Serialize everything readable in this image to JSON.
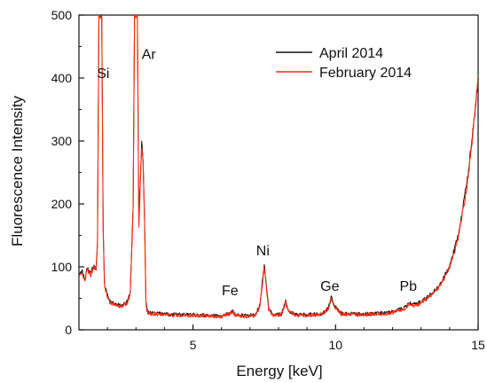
{
  "chart_data": {
    "type": "line",
    "title": "",
    "xlabel": "Energy [keV]",
    "ylabel": "Fluorescence Intensity",
    "xlim": [
      1,
      15
    ],
    "ylim": [
      0,
      500
    ],
    "x_ticks": [
      5,
      10,
      15
    ],
    "y_ticks": [
      0,
      100,
      200,
      300,
      400,
      500
    ],
    "grid": false,
    "legend_position": "top-right",
    "series": [
      {
        "name": "April 2014",
        "color": "#111111",
        "points": [
          [
            1.0,
            85
          ],
          [
            1.1,
            95
          ],
          [
            1.2,
            80
          ],
          [
            1.3,
            100
          ],
          [
            1.4,
            88
          ],
          [
            1.5,
            102
          ],
          [
            1.6,
            98
          ],
          [
            1.65,
            140
          ],
          [
            1.7,
            500
          ],
          [
            1.75,
            500
          ],
          [
            1.8,
            500
          ],
          [
            1.85,
            160
          ],
          [
            1.9,
            70
          ],
          [
            2.0,
            55
          ],
          [
            2.1,
            45
          ],
          [
            2.3,
            40
          ],
          [
            2.5,
            38
          ],
          [
            2.7,
            45
          ],
          [
            2.8,
            60
          ],
          [
            2.9,
            200
          ],
          [
            2.95,
            500
          ],
          [
            3.0,
            500
          ],
          [
            3.05,
            500
          ],
          [
            3.1,
            170
          ],
          [
            3.15,
            230
          ],
          [
            3.2,
            295
          ],
          [
            3.25,
            270
          ],
          [
            3.3,
            180
          ],
          [
            3.35,
            45
          ],
          [
            3.4,
            28
          ],
          [
            3.6,
            26
          ],
          [
            4.0,
            25
          ],
          [
            4.5,
            24
          ],
          [
            5.0,
            24
          ],
          [
            5.5,
            23
          ],
          [
            6.0,
            22
          ],
          [
            6.2,
            25
          ],
          [
            6.4,
            30
          ],
          [
            6.5,
            24
          ],
          [
            6.8,
            22
          ],
          [
            7.2,
            24
          ],
          [
            7.35,
            40
          ],
          [
            7.45,
            85
          ],
          [
            7.5,
            105
          ],
          [
            7.55,
            80
          ],
          [
            7.65,
            35
          ],
          [
            7.8,
            24
          ],
          [
            8.1,
            25
          ],
          [
            8.25,
            45
          ],
          [
            8.35,
            30
          ],
          [
            8.6,
            24
          ],
          [
            9.0,
            24
          ],
          [
            9.5,
            25
          ],
          [
            9.75,
            35
          ],
          [
            9.85,
            52
          ],
          [
            9.95,
            38
          ],
          [
            10.2,
            26
          ],
          [
            10.8,
            25
          ],
          [
            11.5,
            26
          ],
          [
            12.0,
            28
          ],
          [
            12.4,
            35
          ],
          [
            12.6,
            42
          ],
          [
            12.8,
            40
          ],
          [
            13.0,
            45
          ],
          [
            13.3,
            55
          ],
          [
            13.6,
            68
          ],
          [
            14.0,
            100
          ],
          [
            14.3,
            150
          ],
          [
            14.6,
            230
          ],
          [
            14.8,
            310
          ],
          [
            14.92,
            360
          ],
          [
            14.98,
            390
          ]
        ]
      },
      {
        "name": "February 2014",
        "color": "#ff2a0f",
        "points": [
          [
            1.0,
            82
          ],
          [
            1.1,
            92
          ],
          [
            1.2,
            78
          ],
          [
            1.3,
            97
          ],
          [
            1.4,
            85
          ],
          [
            1.5,
            99
          ],
          [
            1.6,
            96
          ],
          [
            1.65,
            135
          ],
          [
            1.7,
            500
          ],
          [
            1.75,
            500
          ],
          [
            1.8,
            500
          ],
          [
            1.85,
            155
          ],
          [
            1.9,
            68
          ],
          [
            2.0,
            52
          ],
          [
            2.1,
            43
          ],
          [
            2.3,
            39
          ],
          [
            2.5,
            37
          ],
          [
            2.7,
            43
          ],
          [
            2.8,
            58
          ],
          [
            2.9,
            190
          ],
          [
            2.95,
            500
          ],
          [
            3.0,
            500
          ],
          [
            3.05,
            500
          ],
          [
            3.1,
            165
          ],
          [
            3.15,
            225
          ],
          [
            3.2,
            290
          ],
          [
            3.25,
            265
          ],
          [
            3.3,
            175
          ],
          [
            3.35,
            43
          ],
          [
            3.4,
            27
          ],
          [
            3.6,
            25
          ],
          [
            4.0,
            24
          ],
          [
            4.5,
            23
          ],
          [
            5.0,
            23
          ],
          [
            5.5,
            22
          ],
          [
            6.0,
            21
          ],
          [
            6.2,
            24
          ],
          [
            6.4,
            28
          ],
          [
            6.5,
            23
          ],
          [
            6.8,
            21
          ],
          [
            7.2,
            23
          ],
          [
            7.35,
            38
          ],
          [
            7.45,
            80
          ],
          [
            7.5,
            100
          ],
          [
            7.55,
            76
          ],
          [
            7.65,
            33
          ],
          [
            7.8,
            23
          ],
          [
            8.1,
            24
          ],
          [
            8.25,
            43
          ],
          [
            8.35,
            29
          ],
          [
            8.6,
            23
          ],
          [
            9.0,
            23
          ],
          [
            9.5,
            24
          ],
          [
            9.75,
            34
          ],
          [
            9.85,
            50
          ],
          [
            9.95,
            36
          ],
          [
            10.2,
            25
          ],
          [
            10.8,
            24
          ],
          [
            11.5,
            25
          ],
          [
            12.0,
            27
          ],
          [
            12.4,
            33
          ],
          [
            12.6,
            40
          ],
          [
            12.8,
            38
          ],
          [
            13.0,
            43
          ],
          [
            13.3,
            53
          ],
          [
            13.6,
            66
          ],
          [
            14.0,
            98
          ],
          [
            14.3,
            145
          ],
          [
            14.6,
            225
          ],
          [
            14.8,
            305
          ],
          [
            14.92,
            360
          ],
          [
            15.0,
            405
          ]
        ]
      }
    ],
    "annotations": [
      {
        "text": "Si",
        "x": 1.85,
        "y": 400
      },
      {
        "text": "Ar",
        "x": 3.45,
        "y": 430
      },
      {
        "text": "Fe",
        "x": 6.3,
        "y": 55
      },
      {
        "text": "Ni",
        "x": 7.45,
        "y": 118
      },
      {
        "text": "Ge",
        "x": 9.8,
        "y": 62
      },
      {
        "text": "Pb",
        "x": 12.55,
        "y": 62
      }
    ]
  }
}
